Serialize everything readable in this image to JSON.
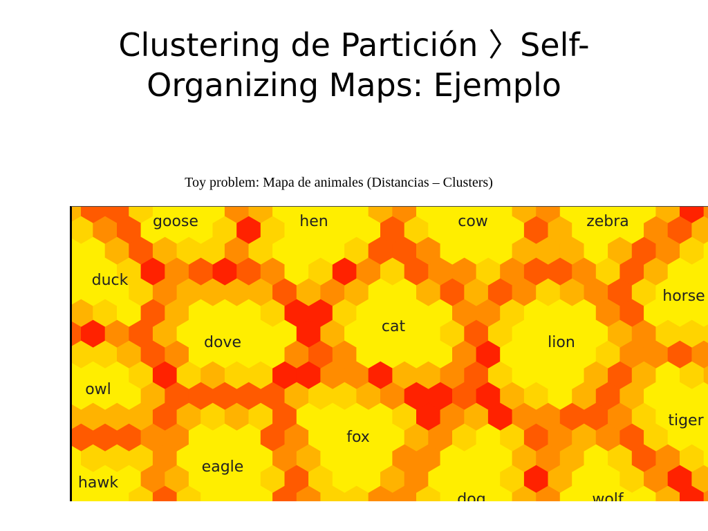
{
  "title": "Clustering de Partición 〉Self-\nOrganizing Maps: Ejemplo",
  "caption": "Toy problem: Mapa de animales (Distancias – Clusters)",
  "som_map": {
    "colors": [
      "#ffee00",
      "#ffd400",
      "#ffb300",
      "#ff8c00",
      "#ff5a00",
      "#ff2200"
    ],
    "labels": [
      {
        "name": "goose"
      },
      {
        "name": "hen"
      },
      {
        "name": "cow"
      },
      {
        "name": "zebra"
      },
      {
        "name": "duck"
      },
      {
        "name": "horse"
      },
      {
        "name": "cat"
      },
      {
        "name": "dove"
      },
      {
        "name": "lion"
      },
      {
        "name": "owl"
      },
      {
        "name": "tiger"
      },
      {
        "name": "fox"
      },
      {
        "name": "eagle"
      },
      {
        "name": "hawk"
      },
      {
        "name": "dog"
      },
      {
        "name": "wolf"
      }
    ]
  }
}
